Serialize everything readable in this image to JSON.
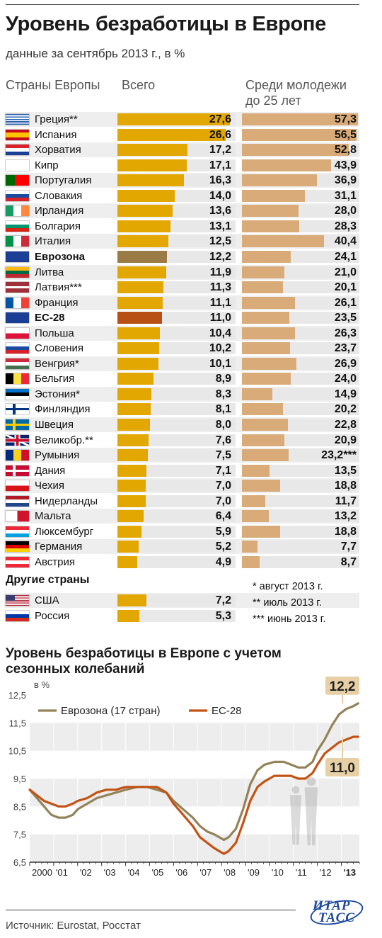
{
  "header": {
    "title": "Уровень безработицы в Европе",
    "subtitle": "данные за сентябрь 2013 г., в %",
    "col_countries": "Страны Европы",
    "col_total": "Всего",
    "col_youth_line1": "Среди молодежи",
    "col_youth_line2": "до 25 лет"
  },
  "colors": {
    "bar_total": "#e2a700",
    "bar_youth": "#d9ab78",
    "bar_eurozone": "#9a7b46",
    "bar_eu28": "#b84f14",
    "line_eurozone": "#94825a",
    "line_eu28": "#c35214"
  },
  "chart_data": [
    {
      "type": "bar",
      "title": "Уровень безработицы в Европе",
      "subtitle": "данные за сентябрь 2013 г., в %",
      "categories": [
        "Греция**",
        "Испания",
        "Хорватия",
        "Кипр",
        "Португалия",
        "Словакия",
        "Ирландия",
        "Болгария",
        "Италия",
        "Еврозона",
        "Литва",
        "Латвия***",
        "Франция",
        "ЕС-28",
        "Польша",
        "Словения",
        "Венгрия*",
        "Бельгия",
        "Эстония*",
        "Финляндия",
        "Швеция",
        "Великобр.**",
        "Румыния",
        "Дания",
        "Чехия",
        "Нидерланды",
        "Мальта",
        "Люксембург",
        "Германия",
        "Австрия"
      ],
      "series": [
        {
          "name": "Всего",
          "values": [
            27.6,
            26.6,
            17.2,
            17.1,
            16.3,
            14.0,
            13.6,
            13.1,
            12.5,
            12.2,
            11.9,
            11.3,
            11.1,
            11.0,
            10.4,
            10.2,
            10.1,
            8.9,
            8.3,
            8.1,
            8.0,
            7.6,
            7.5,
            7.1,
            7.0,
            7.0,
            6.4,
            5.9,
            5.2,
            4.9
          ],
          "labels": [
            "27,6",
            "26,6",
            "17,2",
            "17,1",
            "16,3",
            "14,0",
            "13,6",
            "13,1",
            "12,5",
            "12,2",
            "11,9",
            "11,3",
            "11,1",
            "11,0",
            "10,4",
            "10,2",
            "10,1",
            "8,9",
            "8,3",
            "8,1",
            "8,0",
            "7,6",
            "7,5",
            "7,1",
            "7,0",
            "7,0",
            "6,4",
            "5,9",
            "5,2",
            "4,9"
          ]
        },
        {
          "name": "Среди молодежи до 25 лет",
          "values": [
            57.3,
            56.5,
            52.8,
            43.9,
            36.9,
            31.1,
            28.0,
            28.3,
            40.4,
            24.1,
            21.0,
            20.1,
            26.1,
            23.5,
            26.3,
            23.7,
            26.9,
            24.0,
            14.9,
            20.2,
            22.8,
            20.9,
            23.2,
            13.5,
            18.8,
            11.7,
            13.2,
            18.8,
            7.7,
            8.7
          ],
          "labels": [
            "57,3",
            "56,5",
            "52,8",
            "43,9",
            "36,9",
            "31,1",
            "28,0",
            "28,3",
            "40,4",
            "24,1",
            "21,0",
            "20,1",
            "26,1",
            "23,5",
            "26,3",
            "23,7",
            "26,9",
            "24,0",
            "14,9",
            "20,2",
            "22,8",
            "20,9",
            "23,2***",
            "13,5",
            "18,8",
            "11,7",
            "13,2",
            "18,8",
            "7,7",
            "8,7"
          ]
        }
      ],
      "bold_categories": [
        "Еврозона",
        "ЕС-28"
      ],
      "other_title": "Другие страны",
      "other_categories": [
        "США",
        "Россия"
      ],
      "other_values": [
        7.2,
        5.3
      ],
      "other_labels": [
        "7,2",
        "5,3"
      ],
      "notes": [
        "* август 2013 г.",
        "** июль 2013 г.",
        "*** июнь 2013 г."
      ]
    },
    {
      "type": "line",
      "title": "Уровень безработицы в Европе с учетом сезонных колебаний",
      "ylabel": "в %",
      "ylim": [
        6.5,
        12.5
      ],
      "yticks": [
        "6,5",
        "7,5",
        "8,5",
        "9,5",
        "10,5",
        "11,5",
        "12,5"
      ],
      "xticks": [
        "2000",
        "'01",
        "'02",
        "'03",
        "'04",
        "'05",
        "'06",
        "'07",
        "'08",
        "'09",
        "'10",
        "'11",
        "'12",
        "'13"
      ],
      "xlim": [
        2000,
        2013.75
      ],
      "legend_position": "top-left",
      "series": [
        {
          "name": "Еврозона (17 стран)",
          "end_label": "12,2",
          "x": [
            2000,
            2000.3,
            2000.6,
            2000.9,
            2001.2,
            2001.5,
            2001.8,
            2002.0,
            2002.4,
            2002.8,
            2003.2,
            2003.6,
            2004.0,
            2004.5,
            2004.9,
            2005.3,
            2005.7,
            2006.0,
            2006.4,
            2006.8,
            2007.1,
            2007.4,
            2007.7,
            2007.9,
            2008.1,
            2008.3,
            2008.6,
            2008.9,
            2009.2,
            2009.5,
            2009.8,
            2010.2,
            2010.6,
            2010.9,
            2011.2,
            2011.5,
            2011.8,
            2012.0,
            2012.3,
            2012.6,
            2012.9,
            2013.2,
            2013.5,
            2013.7
          ],
          "y": [
            9.1,
            8.8,
            8.5,
            8.2,
            8.1,
            8.1,
            8.2,
            8.4,
            8.6,
            8.8,
            8.9,
            9.0,
            9.1,
            9.2,
            9.2,
            9.1,
            9.0,
            8.7,
            8.4,
            8.1,
            7.8,
            7.6,
            7.5,
            7.4,
            7.3,
            7.4,
            7.7,
            8.4,
            9.3,
            9.8,
            10.0,
            10.1,
            10.1,
            10.0,
            9.9,
            9.9,
            10.1,
            10.5,
            10.9,
            11.4,
            11.8,
            12.0,
            12.1,
            12.2
          ]
        },
        {
          "name": "ЕС-28",
          "end_label": "11,0",
          "x": [
            2000,
            2000.3,
            2000.6,
            2000.9,
            2001.2,
            2001.5,
            2001.8,
            2002.0,
            2002.4,
            2002.8,
            2003.2,
            2003.6,
            2004.0,
            2004.5,
            2004.9,
            2005.3,
            2005.7,
            2006.0,
            2006.4,
            2006.8,
            2007.1,
            2007.4,
            2007.7,
            2007.9,
            2008.1,
            2008.3,
            2008.6,
            2008.9,
            2009.2,
            2009.5,
            2009.8,
            2010.2,
            2010.6,
            2010.9,
            2011.2,
            2011.5,
            2011.8,
            2012.0,
            2012.3,
            2012.6,
            2012.9,
            2013.2,
            2013.5,
            2013.7
          ],
          "y": [
            9.1,
            8.9,
            8.7,
            8.6,
            8.5,
            8.5,
            8.6,
            8.7,
            8.8,
            9.0,
            9.1,
            9.1,
            9.2,
            9.2,
            9.2,
            9.2,
            9.0,
            8.6,
            8.2,
            7.8,
            7.4,
            7.2,
            7.0,
            6.9,
            6.8,
            6.9,
            7.2,
            7.9,
            8.7,
            9.2,
            9.4,
            9.6,
            9.6,
            9.6,
            9.5,
            9.5,
            9.7,
            10.0,
            10.4,
            10.6,
            10.8,
            10.9,
            11.0,
            11.0
          ]
        }
      ]
    }
  ],
  "footer": {
    "source": "Источник: Eurostat, Росстат",
    "logo_line1": "ИТАР",
    "logo_line2": "ТАСС"
  }
}
